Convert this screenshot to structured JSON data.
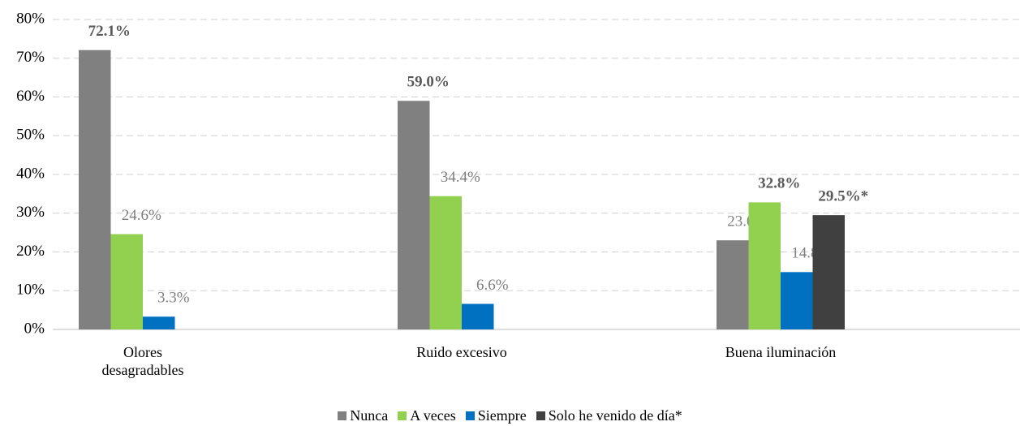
{
  "chart_data": {
    "type": "bar",
    "categories": [
      "Olores desagradables",
      "Ruido excesivo",
      "Buena iluminación"
    ],
    "series": [
      {
        "name": "Nunca",
        "color": "#808080",
        "values": [
          72.1,
          59.0,
          23.0
        ],
        "value_labels": [
          "72.1%",
          "59.0%",
          "23.0%"
        ]
      },
      {
        "name": "A veces",
        "color": "#92d050",
        "values": [
          24.6,
          34.4,
          32.8
        ],
        "value_labels": [
          "24.6%",
          "34.4%",
          "32.8%"
        ]
      },
      {
        "name": "Siempre",
        "color": "#0070c0",
        "values": [
          3.3,
          6.6,
          14.8
        ],
        "value_labels": [
          "3.3%",
          "6.6%",
          "14.8%"
        ]
      },
      {
        "name": "Solo he venido de día*",
        "color": "#404040",
        "values": [
          null,
          null,
          29.5
        ],
        "value_labels": [
          null,
          null,
          "29.5%*"
        ]
      }
    ],
    "ylim": [
      0,
      80
    ],
    "yticks": [
      {
        "value": 0,
        "label": "0%"
      },
      {
        "value": 10,
        "label": "10%"
      },
      {
        "value": 20,
        "label": "20%"
      },
      {
        "value": 30,
        "label": "30%"
      },
      {
        "value": 40,
        "label": "40%"
      },
      {
        "value": 50,
        "label": "50%"
      },
      {
        "value": 60,
        "label": "60%"
      },
      {
        "value": 70,
        "label": "70%"
      },
      {
        "value": 80,
        "label": "80%"
      }
    ],
    "grid": true,
    "legend": "bottom"
  }
}
